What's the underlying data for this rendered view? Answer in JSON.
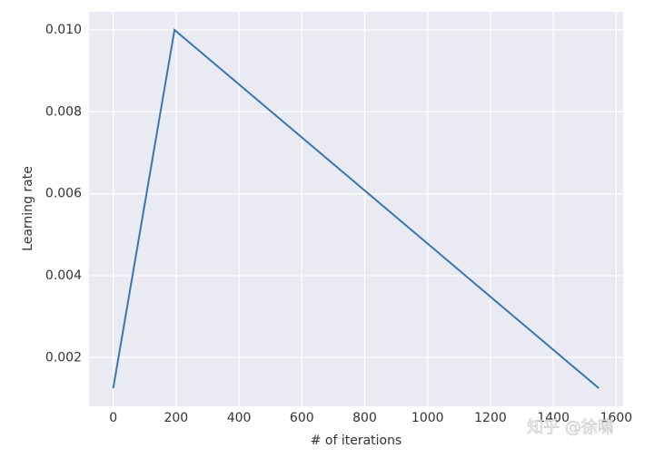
{
  "chart_data": {
    "type": "line",
    "xlabel": "# of iterations",
    "ylabel": "Learning rate",
    "x": [
      0,
      195,
      1545
    ],
    "values": [
      0.00125,
      0.01,
      0.00125
    ],
    "color": "#3b75af",
    "xlim": [
      -77,
      1622
    ],
    "ylim": [
      0.00081,
      0.010443
    ],
    "xticks": [
      0,
      200,
      400,
      600,
      800,
      1000,
      1200,
      1400,
      1600
    ],
    "yticks": [
      0.002,
      0.004,
      0.006,
      0.008,
      {
        "value": 0.01,
        "label": "0.010"
      }
    ],
    "grid": true,
    "watermark": "知乎 @徐啸"
  }
}
